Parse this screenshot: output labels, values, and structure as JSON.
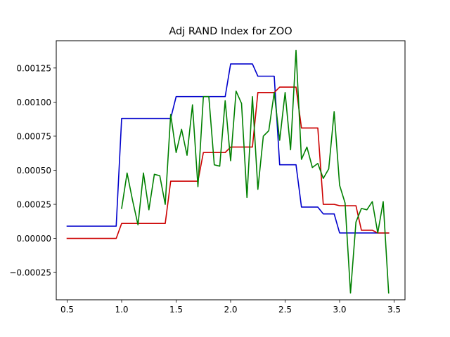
{
  "chart_data": {
    "type": "line",
    "title": "Adj RAND Index for ZOO",
    "xlabel": "",
    "ylabel": "",
    "xlim": [
      0.4,
      3.6
    ],
    "ylim": [
      -0.00045,
      0.00145
    ],
    "xticks": [
      0.5,
      1.0,
      1.5,
      2.0,
      2.5,
      3.0,
      3.5
    ],
    "xtick_labels": [
      "0.5",
      "1.0",
      "1.5",
      "2.0",
      "2.5",
      "3.0",
      "3.5"
    ],
    "yticks": [
      -0.00025,
      0.0,
      0.00025,
      0.0005,
      0.00075,
      0.001,
      0.00125
    ],
    "ytick_labels": [
      "−0.00025",
      "0.00000",
      "0.00025",
      "0.00050",
      "0.00075",
      "0.00100",
      "0.00125"
    ],
    "grid": false,
    "legend": false,
    "series": [
      {
        "color": "#0000cc",
        "x": [
          0.5,
          0.95,
          1.0,
          1.45,
          1.5,
          1.95,
          2.0,
          2.2,
          2.25,
          2.4,
          2.45,
          2.6,
          2.65,
          2.8,
          2.85,
          2.95,
          3.0,
          3.45
        ],
        "y": [
          9e-05,
          9e-05,
          0.00088,
          0.00088,
          0.00104,
          0.00104,
          0.00128,
          0.00128,
          0.00119,
          0.00119,
          0.00054,
          0.00054,
          0.00023,
          0.00023,
          0.00018,
          0.00018,
          4e-05,
          4e-05
        ]
      },
      {
        "color": "#cc0000",
        "x": [
          0.5,
          0.95,
          1.0,
          1.4,
          1.45,
          1.7,
          1.75,
          1.95,
          2.0,
          2.2,
          2.25,
          2.4,
          2.45,
          2.6,
          2.65,
          2.8,
          2.85,
          2.95,
          3.0,
          3.15,
          3.2,
          3.3,
          3.35,
          3.45
        ],
        "y": [
          0.0,
          0.0,
          0.00011,
          0.00011,
          0.00042,
          0.00042,
          0.00063,
          0.00063,
          0.00067,
          0.00067,
          0.00107,
          0.00107,
          0.00111,
          0.00111,
          0.00081,
          0.00081,
          0.00025,
          0.00025,
          0.00024,
          0.00024,
          6e-05,
          6e-05,
          4e-05,
          4e-05
        ]
      },
      {
        "color": "#008000",
        "x": [
          1.0,
          1.05,
          1.1,
          1.15,
          1.2,
          1.25,
          1.3,
          1.35,
          1.4,
          1.45,
          1.5,
          1.55,
          1.6,
          1.65,
          1.7,
          1.75,
          1.8,
          1.85,
          1.9,
          1.95,
          2.0,
          2.05,
          2.1,
          2.15,
          2.2,
          2.25,
          2.3,
          2.35,
          2.4,
          2.45,
          2.5,
          2.55,
          2.6,
          2.65,
          2.7,
          2.75,
          2.8,
          2.85,
          2.9,
          2.95,
          3.0,
          3.05,
          3.1,
          3.15,
          3.2,
          3.25,
          3.3,
          3.35,
          3.4,
          3.45
        ],
        "y": [
          0.00022,
          0.00048,
          0.00028,
          0.0001,
          0.00048,
          0.00021,
          0.00047,
          0.00046,
          0.00025,
          0.00091,
          0.00063,
          0.0008,
          0.00061,
          0.00098,
          0.00038,
          0.00104,
          0.00104,
          0.00054,
          0.00053,
          0.00101,
          0.00057,
          0.00108,
          0.00099,
          0.0003,
          0.00104,
          0.00036,
          0.00075,
          0.00079,
          0.00107,
          0.00072,
          0.00107,
          0.00065,
          0.00138,
          0.00058,
          0.00067,
          0.00052,
          0.00055,
          0.00044,
          0.00051,
          0.00093,
          0.00039,
          0.00026,
          -0.0004,
          0.00012,
          0.00022,
          0.00021,
          0.00027,
          4e-05,
          0.00027,
          -0.0004
        ]
      }
    ]
  }
}
